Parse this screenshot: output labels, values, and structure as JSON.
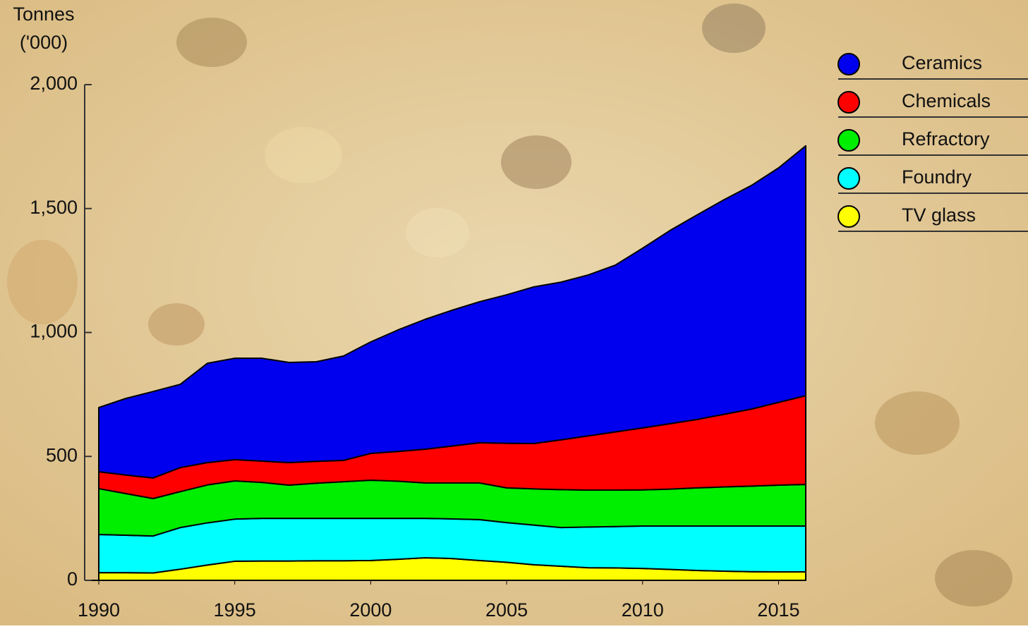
{
  "chart_data": {
    "type": "stacked_area",
    "ylabel": [
      "Tonnes",
      "('000)"
    ],
    "x": [
      1990,
      1991,
      1992,
      1993,
      1994,
      1995,
      1996,
      1997,
      1998,
      1999,
      2000,
      2001,
      2002,
      2003,
      2004,
      2005,
      2006,
      2007,
      2008,
      2009,
      2010,
      2011,
      2012,
      2013,
      2014,
      2015,
      2016
    ],
    "xlim": [
      1990,
      2016
    ],
    "xticks": [
      1990,
      1995,
      2000,
      2005,
      2010,
      2015
    ],
    "ylim": [
      0,
      2000
    ],
    "yticks": [
      0,
      500,
      {
        "value": 1000,
        "label": "1,000"
      },
      {
        "value": 1500,
        "label": "1,500"
      },
      {
        "value": 2000,
        "label": "2,000"
      }
    ],
    "series": [
      {
        "name": "Ceramics",
        "color": "#0000ee",
        "values": [
          259,
          309,
          349,
          336,
          401,
          409,
          415,
          404,
          402,
          421,
          450,
          490,
          524,
          548,
          569,
          599,
          632,
          636,
          649,
          673,
          725,
          779,
          825,
          866,
          902,
          946,
          1008
        ]
      },
      {
        "name": "Chemicals",
        "color": "#ff0000",
        "values": [
          68,
          75,
          83,
          97,
          90,
          86,
          86,
          91,
          88,
          86,
          108,
          120,
          136,
          149,
          162,
          180,
          183,
          201,
          219,
          235,
          250,
          264,
          276,
          293,
          311,
          334,
          358
        ]
      },
      {
        "name": "Refractory",
        "color": "#00ee00",
        "values": [
          185,
          168,
          151,
          145,
          153,
          154,
          145,
          134,
          142,
          148,
          154,
          150,
          143,
          145,
          148,
          140,
          146,
          153,
          149,
          147,
          146,
          149,
          154,
          158,
          161,
          165,
          168
        ]
      },
      {
        "name": "Foundry",
        "color": "#00ffff",
        "values": [
          154,
          151,
          149,
          168,
          170,
          170,
          172,
          172,
          171,
          171,
          170,
          165,
          159,
          160,
          165,
          160,
          160,
          156,
          164,
          167,
          171,
          175,
          179,
          182,
          184,
          185,
          185
        ]
      },
      {
        "name": "TV glass",
        "color": "#ffff00",
        "values": [
          31,
          31,
          30,
          45,
          62,
          77,
          78,
          78,
          79,
          79,
          80,
          85,
          91,
          88,
          80,
          73,
          63,
          57,
          51,
          50,
          48,
          44,
          40,
          37,
          35,
          34,
          34
        ]
      }
    ]
  }
}
